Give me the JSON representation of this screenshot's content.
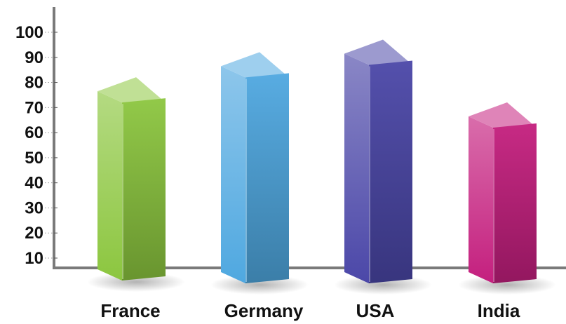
{
  "chart_data": {
    "type": "bar",
    "title": "",
    "xlabel": "",
    "ylabel": "",
    "categories": [
      "France",
      "Germany",
      "USA",
      "India"
    ],
    "values": [
      72,
      82,
      87,
      62
    ],
    "y_ticks": [
      "10",
      "20",
      "30",
      "40",
      "50",
      "60",
      "70",
      "80",
      "90",
      "100"
    ],
    "ylim": [
      0,
      100
    ],
    "grid": false,
    "bar_style": "3d",
    "colors": [
      "#8cc63f",
      "#4fa8e0",
      "#4b47a8",
      "#c41f7e"
    ]
  }
}
